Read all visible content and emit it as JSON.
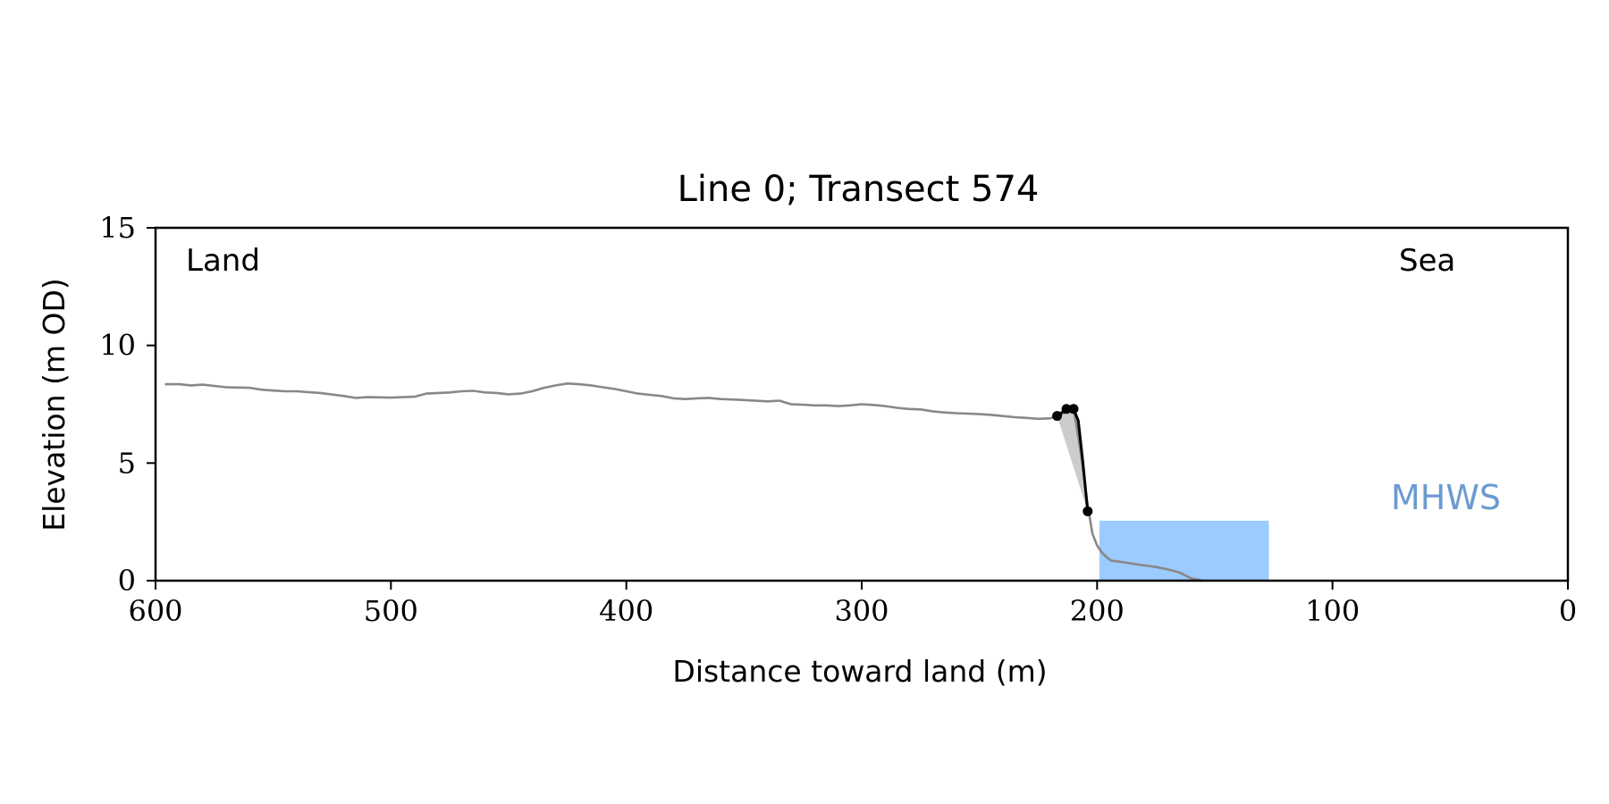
{
  "chart_data": {
    "type": "line",
    "title": "Line 0; Transect 574",
    "xlabel": "Distance toward land (m)",
    "ylabel": "Elevation (m OD)",
    "xlim": [
      600,
      0
    ],
    "ylim": [
      0,
      15
    ],
    "x_ticks": [
      600,
      500,
      400,
      300,
      200,
      100,
      0
    ],
    "y_ticks": [
      0,
      5,
      10,
      15
    ],
    "x_tick_labels": [
      "600",
      "500",
      "400",
      "300",
      "200",
      "100",
      "0"
    ],
    "y_tick_labels": [
      "0",
      "5",
      "10",
      "15"
    ],
    "grid": false,
    "colors": {
      "profile": "#888888",
      "cliff": "#000000",
      "cliff_fill": "#cccccc",
      "mhws_fill": "#9ccbff",
      "mhws_text": "#6a9bd1"
    },
    "annotations": {
      "land": "Land",
      "sea": "Sea",
      "mhws": "MHWS"
    },
    "profile": {
      "x": [
        596,
        590,
        585,
        580,
        575,
        570,
        560,
        555,
        550,
        545,
        540,
        530,
        520,
        515,
        510,
        500,
        490,
        485,
        480,
        475,
        470,
        465,
        460,
        455,
        450,
        445,
        440,
        435,
        430,
        425,
        420,
        415,
        410,
        405,
        400,
        395,
        390,
        385,
        380,
        375,
        370,
        365,
        360,
        355,
        350,
        340,
        335,
        330,
        325,
        320,
        315,
        310,
        305,
        300,
        295,
        290,
        285,
        280,
        275,
        270,
        265,
        260,
        255,
        250,
        245,
        240,
        235,
        230,
        225,
        220,
        217,
        210,
        207,
        204,
        202,
        200,
        198,
        196,
        194,
        190,
        185,
        180,
        175,
        170,
        165,
        160,
        155
      ],
      "y": [
        8.35,
        8.35,
        8.3,
        8.33,
        8.28,
        8.22,
        8.2,
        8.12,
        8.08,
        8.05,
        8.05,
        7.98,
        7.85,
        7.77,
        7.8,
        7.78,
        7.82,
        7.95,
        7.98,
        8.0,
        8.05,
        8.07,
        8.0,
        7.98,
        7.92,
        7.95,
        8.05,
        8.2,
        8.3,
        8.38,
        8.35,
        8.3,
        8.22,
        8.15,
        8.05,
        7.95,
        7.9,
        7.85,
        7.75,
        7.72,
        7.75,
        7.77,
        7.72,
        7.7,
        7.68,
        7.62,
        7.65,
        7.5,
        7.48,
        7.45,
        7.45,
        7.42,
        7.45,
        7.5,
        7.47,
        7.42,
        7.35,
        7.3,
        7.28,
        7.2,
        7.15,
        7.12,
        7.1,
        7.08,
        7.05,
        7.0,
        6.95,
        6.92,
        6.88,
        6.9,
        7.0,
        7.3,
        5.5,
        3.2,
        2.0,
        1.5,
        1.2,
        1.0,
        0.85,
        0.8,
        0.72,
        0.65,
        0.58,
        0.48,
        0.35,
        0.1,
        0.0
      ]
    },
    "cliff_line": {
      "x": [
        217,
        213,
        210,
        208,
        206,
        204
      ],
      "y": [
        7.0,
        7.3,
        7.3,
        6.8,
        5.0,
        2.95
      ]
    },
    "cliff_points": {
      "x": [
        217,
        213,
        210,
        204
      ],
      "y": [
        7.0,
        7.3,
        7.3,
        2.95
      ]
    },
    "cliff_polygon": {
      "x": [
        217,
        213,
        210,
        208,
        206,
        204
      ],
      "y": [
        7.0,
        7.3,
        7.3,
        6.8,
        5.0,
        2.95
      ]
    },
    "mhws_band": {
      "x_start": 199,
      "x_end": 127,
      "y_top": 2.55,
      "y_bottom": 0
    }
  }
}
